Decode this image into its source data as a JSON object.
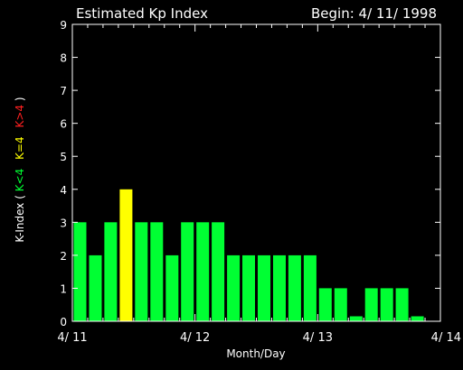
{
  "chart_data": {
    "type": "bar",
    "title": "Estimated Kp Index",
    "subtitle": "Begin: 4/ 11/ 1998",
    "xlabel": "Month/Day",
    "ylabel": {
      "prefix": "K-Index ( ",
      "low": "K<4",
      "mid": "K=4",
      "high": "K>4",
      "suffix": " )"
    },
    "ylim": [
      0,
      9
    ],
    "yticks": [
      "0",
      "1",
      "2",
      "3",
      "4",
      "5",
      "6",
      "7",
      "8",
      "9"
    ],
    "xlim_days": [
      0,
      3
    ],
    "xticks": [
      {
        "label": "4/ 11",
        "day": 0
      },
      {
        "label": "4/ 12",
        "day": 1
      },
      {
        "label": "4/ 13",
        "day": 2
      },
      {
        "label": "4/ 14",
        "day": 3
      }
    ],
    "interval_hours": 3,
    "values": [
      3,
      2,
      3,
      4,
      3,
      3,
      2,
      3,
      3,
      3,
      2,
      2,
      2,
      2,
      2,
      2,
      1,
      1,
      0.15,
      1,
      1,
      1,
      0.15
    ],
    "colors": {
      "below4": "#00ff33",
      "equal4": "#ffff00",
      "above4": "#ff2020",
      "axes": "#ffffff",
      "background": "#000000"
    }
  }
}
